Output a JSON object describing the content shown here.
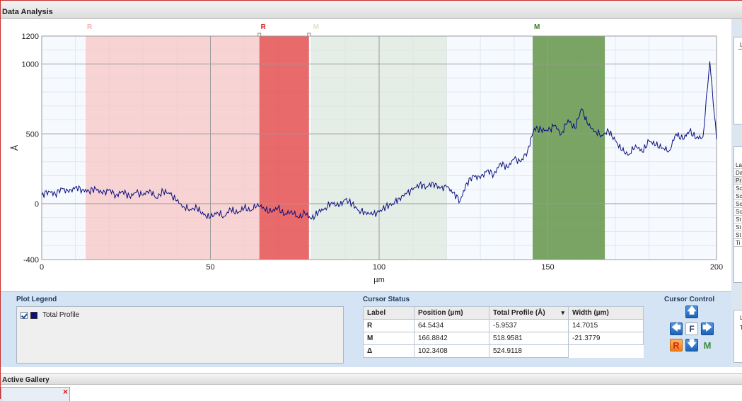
{
  "window": {
    "title": "Data Analysis"
  },
  "chart_data": {
    "type": "line",
    "xlabel": "µm",
    "ylabel": "Å",
    "xlim": [
      0,
      200
    ],
    "ylim": [
      -400,
      1200
    ],
    "x_ticks": [
      0,
      50,
      100,
      150,
      200
    ],
    "y_ticks": [
      -400,
      0,
      500,
      1000,
      1200
    ],
    "grid": true,
    "series": [
      {
        "name": "Total Profile",
        "color": "#0b0f80",
        "x": [
          0,
          2,
          4,
          6,
          8,
          10,
          12,
          14,
          16,
          18,
          20,
          22,
          24,
          26,
          28,
          30,
          32,
          34,
          36,
          38,
          40,
          42,
          44,
          46,
          48,
          50,
          52,
          54,
          56,
          58,
          60,
          62,
          64,
          66,
          68,
          70,
          72,
          74,
          76,
          78,
          80,
          82,
          84,
          86,
          88,
          90,
          92,
          94,
          96,
          98,
          100,
          102,
          104,
          106,
          108,
          110,
          112,
          114,
          116,
          118,
          120,
          122,
          124,
          126,
          128,
          130,
          132,
          134,
          136,
          138,
          140,
          142,
          144,
          146,
          148,
          150,
          152,
          154,
          156,
          158,
          160,
          162,
          164,
          166,
          168,
          170,
          172,
          174,
          176,
          178,
          180,
          182,
          184,
          186,
          188,
          190,
          192,
          194,
          196,
          198,
          200
        ],
        "values": [
          60,
          90,
          70,
          110,
          80,
          120,
          100,
          90,
          110,
          70,
          100,
          60,
          90,
          50,
          80,
          60,
          100,
          40,
          90,
          70,
          20,
          -20,
          -40,
          -30,
          -80,
          -100,
          -60,
          -90,
          -40,
          -70,
          -30,
          -50,
          0,
          -40,
          -60,
          -30,
          -80,
          -50,
          -100,
          -70,
          -110,
          -60,
          -30,
          10,
          -20,
          30,
          0,
          -50,
          -60,
          -80,
          -60,
          -20,
          0,
          40,
          70,
          100,
          140,
          120,
          150,
          110,
          120,
          80,
          20,
          150,
          200,
          180,
          240,
          210,
          290,
          260,
          320,
          300,
          380,
          540,
          530,
          520,
          560,
          500,
          600,
          540,
          680,
          560,
          520,
          490,
          520,
          450,
          380,
          350,
          420,
          370,
          450,
          420,
          400,
          380,
          500,
          460,
          520,
          470,
          480,
          1020,
          460
        ]
      }
    ],
    "regions": [
      {
        "label": "R",
        "start": 13,
        "end": 64.5,
        "color": "#f7c6c6",
        "label_color": "#f3b0b0"
      },
      {
        "label": "R",
        "start": 64.5,
        "end": 79.2,
        "color": "#e65050",
        "label_color": "#d32020"
      },
      {
        "label": "M",
        "start": 80,
        "end": 120,
        "color": "#dde8dd",
        "label_color": "#d9e5c9"
      },
      {
        "label": "M",
        "start": 145.5,
        "end": 166.9,
        "color": "#6b9a52",
        "label_color": "#3c7a2b"
      }
    ]
  },
  "legend_panel": {
    "title": "Plot Legend",
    "items": [
      {
        "label": "Total Profile",
        "checked": true,
        "color": "#0b0f80"
      }
    ]
  },
  "cursor_status": {
    "title": "Cursor Status",
    "headers": [
      "Label",
      "Position (µm)",
      "Total Profile (Å)",
      "Width (µm)"
    ],
    "dropdown_icon": "▾",
    "rows": [
      {
        "label": "R",
        "position": "64.5434",
        "profile": "-5.9537",
        "width": "14.7015"
      },
      {
        "label": "M",
        "position": "166.8842",
        "profile": "518.9581",
        "width": "-21.3779"
      },
      {
        "label": "Δ",
        "position": "102.3408",
        "profile": "524.9118",
        "width": ""
      }
    ]
  },
  "cursor_control": {
    "title": "Cursor Control",
    "up": "🡅",
    "left": "🡄",
    "center": "F",
    "right": "🡆",
    "down": "🡇",
    "r_label": "R",
    "m_label": "M"
  },
  "right_panel": {
    "cells": [
      "La",
      "Da",
      "Pr",
      "Sc",
      "Sc",
      "Sc",
      "Sc",
      "St",
      "St",
      "St",
      "Ti"
    ],
    "top_labels": [
      "L",
      "L",
      "T"
    ]
  },
  "gallery": {
    "title": "Active Gallery",
    "close": "×"
  }
}
